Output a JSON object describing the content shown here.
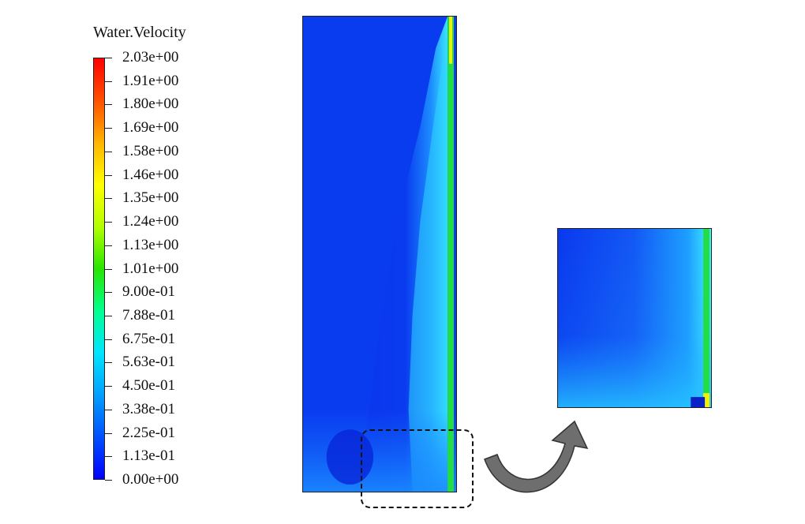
{
  "legend": {
    "title": "Water.Velocity",
    "ticks": [
      "2.03e+00",
      "1.91e+00",
      "1.80e+00",
      "1.69e+00",
      "1.58e+00",
      "1.46e+00",
      "1.35e+00",
      "1.24e+00",
      "1.13e+00",
      "1.01e+00",
      "9.00e-01",
      "7.88e-01",
      "6.75e-01",
      "5.63e-01",
      "4.50e-01",
      "3.38e-01",
      "2.25e-01",
      "1.13e-01",
      "0.00e+00"
    ],
    "colormap": [
      "#0000ff",
      "#0050ff",
      "#00a0ff",
      "#00e5ff",
      "#00ff90",
      "#28e600",
      "#b4ff00",
      "#ffff00",
      "#ffb400",
      "#ff5000",
      "#ff0000"
    ]
  },
  "colors": {
    "field_low": "#0a3cef",
    "field_mid": "#1e9fff",
    "field_high": "#2fe6ee",
    "wall_green": "#22dd44",
    "wall_yellow": "#f2f200"
  }
}
